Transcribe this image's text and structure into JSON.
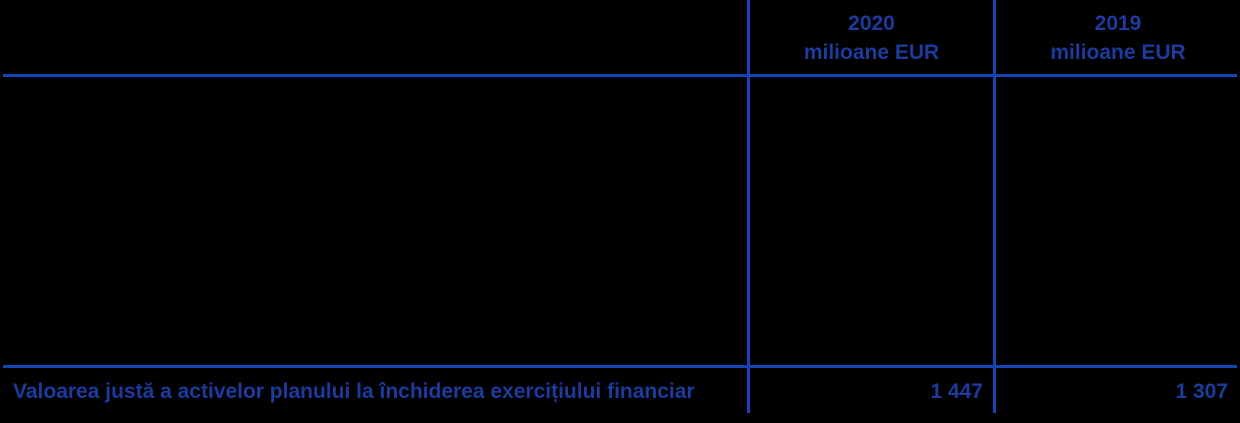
{
  "table": {
    "columns": [
      {
        "year": "2020",
        "unit": "milioane EUR"
      },
      {
        "year": "2019",
        "unit": "milioane EUR"
      }
    ],
    "rows": [
      {
        "label": "Valoarea justă a activelor planului la închiderea exercițiului financiar",
        "values": [
          "1 447",
          "1 307"
        ]
      }
    ],
    "colors": {
      "text": "#1b3b9e",
      "line": "#1545b2",
      "background": "#000000"
    }
  }
}
